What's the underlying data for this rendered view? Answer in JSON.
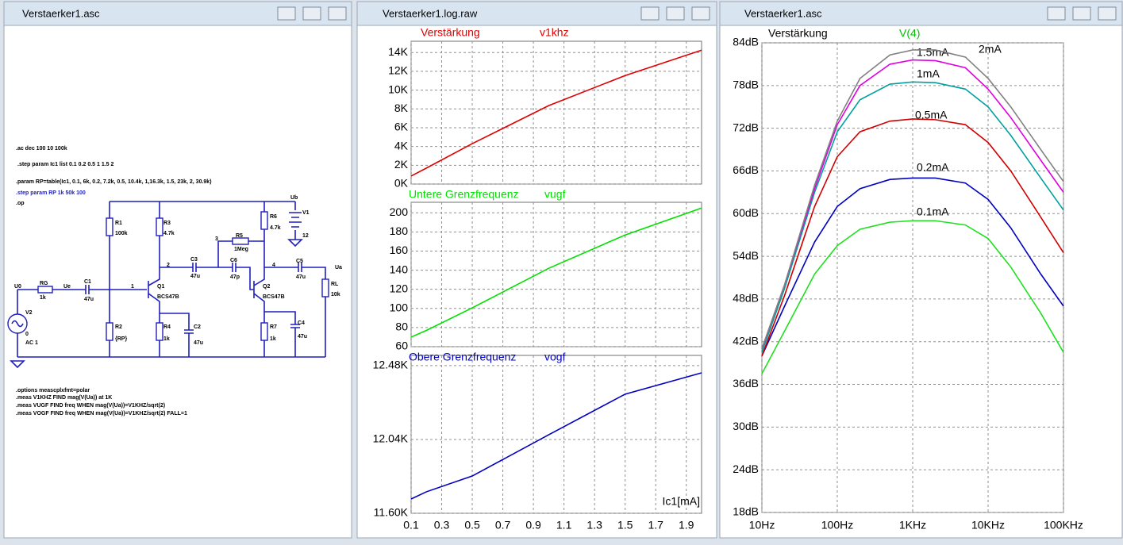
{
  "windows": [
    {
      "title": "Verstaerker1.asc"
    },
    {
      "title": "Verstaerker1.log.raw"
    },
    {
      "title": "Verstaerker1.asc"
    }
  ],
  "schematic": {
    "directives": [
      ".ac dec 100 10 100k",
      ".step param Ic1 list 0.1 0.2 0.5 1 1.5 2",
      ".param RP=table(Ic1, 0.1, 6k, 0.2, 7.2k, 0.5, 10.4k, 1,16.3k, 1.5, 23k, 2, 30.9k)",
      ".step param RP 1k 50k 100",
      ".op",
      ".options meascplxfmt=polar",
      ".meas V1KHZ FIND mag(V(Ua)) at 1K",
      ".meas VUGF FIND freq WHEN mag(V(Ua))=V1KHZ/sqrt(2)",
      ".meas VOGF FIND freq WHEN mag(V(Ua))=V1KHZ/sqrt(2) FALL=1"
    ],
    "labels": [
      "Ub",
      "V1",
      "12",
      "R1",
      "100k",
      "R3",
      "4.7k",
      "R6",
      "4.7k",
      "3",
      "R5",
      "1Meg",
      "2",
      "C3",
      "47u",
      "C6",
      "47p",
      "4",
      "C5",
      "47u",
      "Ua",
      "U0",
      "RG",
      "1k",
      "Ue",
      "C1",
      "47u",
      "1",
      "Q1",
      "BCS47B",
      "Q2",
      "BCS47B",
      "RL",
      "10k",
      "V2",
      "0",
      "AC 1",
      "R2",
      "{RP}",
      "R4",
      "1k",
      "C2",
      "47u",
      "R7",
      "1k",
      "C4",
      "47u"
    ]
  },
  "chart_data": [
    {
      "type": "line",
      "x": [
        0.1,
        0.2,
        0.5,
        1,
        1.5,
        2
      ],
      "xlim": [
        0.1,
        2
      ],
      "xticks": [
        0.1,
        0.3,
        0.5,
        0.7,
        0.9,
        1.1,
        1.3,
        1.5,
        1.7,
        1.9
      ],
      "xlabel": "Ic1[mA]",
      "grid": true,
      "panes": [
        {
          "title": "Verstärkung",
          "ylim": [
            0,
            15200
          ],
          "yticks": [
            {
              "value": 0,
              "label": "0K"
            },
            {
              "value": 2000,
              "label": "2K"
            },
            {
              "value": 4000,
              "label": "4K"
            },
            {
              "value": 6000,
              "label": "6K"
            },
            {
              "value": 8000,
              "label": "8K"
            },
            {
              "value": 10000,
              "label": "10K"
            },
            {
              "value": 12000,
              "label": "12K"
            },
            {
              "value": 14000,
              "label": "14K"
            }
          ],
          "series": [
            {
              "name": "v1khz",
              "color": "#e00000",
              "values": [
                850,
                1700,
                4300,
                8350,
                11550,
                14250
              ]
            }
          ]
        },
        {
          "title": "Untere Grenzfrequenz",
          "ylim": [
            60,
            211
          ],
          "yticks": [
            60,
            80,
            100,
            120,
            140,
            160,
            180,
            200
          ],
          "series": [
            {
              "name": "vugf",
              "color": "#00e000",
              "values": [
                70,
                77,
                100.6,
                142,
                176.8,
                205
              ]
            }
          ]
        },
        {
          "title": "Obere Grenzfrequenz",
          "ylim": [
            11600,
            12541
          ],
          "yticks": [
            {
              "value": 11600,
              "label": "11.60K"
            },
            {
              "value": 12040,
              "label": "12.04K"
            },
            {
              "value": 12480,
              "label": "12.48K"
            }
          ],
          "series": [
            {
              "name": "vogf",
              "color": "#0000c0",
              "values": [
                11685,
                11728,
                11822,
                12068,
                12310,
                12437
              ]
            }
          ]
        }
      ]
    },
    {
      "type": "line",
      "title": "Verstärkung",
      "trace_label": "V(4)",
      "log_x": true,
      "grid": true,
      "x": [
        10,
        20,
        50,
        100,
        200,
        500,
        1000,
        2000,
        5000,
        10000,
        20000,
        50000,
        100000
      ],
      "xlim": [
        10,
        100000
      ],
      "xticks": [
        {
          "value": 10,
          "label": "10Hz"
        },
        {
          "value": 100,
          "label": "100Hz"
        },
        {
          "value": 1000,
          "label": "1KHz"
        },
        {
          "value": 10000,
          "label": "10KHz"
        },
        {
          "value": 100000,
          "label": "100KHz"
        }
      ],
      "ylim": [
        18,
        84
      ],
      "yticks": [
        {
          "value": 18,
          "label": "18dB"
        },
        {
          "value": 24,
          "label": "24dB"
        },
        {
          "value": 30,
          "label": "30dB"
        },
        {
          "value": 36,
          "label": "36dB"
        },
        {
          "value": 42,
          "label": "42dB"
        },
        {
          "value": 48,
          "label": "48dB"
        },
        {
          "value": 54,
          "label": "54dB"
        },
        {
          "value": 60,
          "label": "60dB"
        },
        {
          "value": 66,
          "label": "66dB"
        },
        {
          "value": 72,
          "label": "72dB"
        },
        {
          "value": 78,
          "label": "78dB"
        },
        {
          "value": 84,
          "label": "84dB"
        }
      ],
      "series": [
        {
          "name": "0.1mA",
          "color": "#20e020",
          "values": [
            37.5,
            43.5,
            51.5,
            55.5,
            57.8,
            58.8,
            59,
            59,
            58.4,
            56.5,
            52.5,
            46,
            40.5
          ]
        },
        {
          "name": "0.2mA",
          "color": "#0000c0",
          "values": [
            40,
            47,
            56,
            61,
            63.5,
            64.8,
            65,
            65,
            64.3,
            62,
            58,
            51.5,
            47
          ]
        },
        {
          "name": "0.5mA",
          "color": "#d00000",
          "values": [
            40,
            48.5,
            61,
            68,
            71.5,
            73,
            73.3,
            73.2,
            72.5,
            70,
            66,
            59.5,
            54.5
          ]
        },
        {
          "name": "1mA",
          "color": "#00a0a0",
          "values": [
            40.5,
            49.5,
            63,
            71.5,
            76,
            78.2,
            78.5,
            78.4,
            77.5,
            75,
            71,
            65,
            60.5
          ]
        },
        {
          "name": "1.5mA",
          "color": "#e000e0",
          "values": [
            41,
            50,
            63.5,
            72.5,
            78,
            81,
            81.6,
            81.5,
            80.5,
            77.5,
            73.5,
            67.5,
            63
          ]
        },
        {
          "name": "2mA",
          "color": "#808080",
          "values": [
            41,
            50,
            64,
            73,
            79,
            82.3,
            83,
            83,
            82,
            79,
            75,
            69,
            64.5
          ]
        }
      ]
    }
  ]
}
